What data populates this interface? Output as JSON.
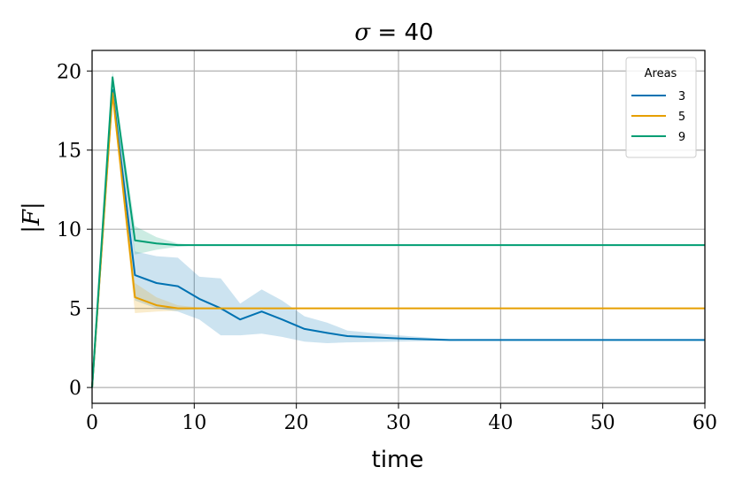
{
  "chart_data": {
    "type": "line",
    "title": "σ = 40",
    "title_symbol": "σ",
    "title_rest": " = 40",
    "xlabel": "time",
    "ylabel": "|F|",
    "xlim": [
      0,
      60
    ],
    "ylim": [
      -1,
      21.3
    ],
    "xticks": [
      0,
      10,
      20,
      30,
      40,
      50,
      60
    ],
    "yticks": [
      0,
      5,
      10,
      15,
      20
    ],
    "grid": true,
    "legend": {
      "title": "Areas",
      "position": "top-right"
    },
    "series": [
      {
        "name": "3",
        "color": "#0072b2",
        "x": [
          0,
          2,
          4.2,
          6.3,
          8.4,
          10.5,
          12.6,
          14.5,
          16.6,
          18.6,
          20.8,
          23,
          25,
          30,
          35,
          40,
          50,
          60
        ],
        "y": [
          0,
          18.8,
          7.1,
          6.6,
          6.4,
          5.6,
          5.0,
          4.3,
          4.8,
          4.3,
          3.7,
          3.45,
          3.25,
          3.1,
          3.0,
          3.0,
          3.0,
          3.0
        ],
        "upper": [
          0,
          19.3,
          8.6,
          8.3,
          8.2,
          7.0,
          6.9,
          5.3,
          6.2,
          5.5,
          4.5,
          4.1,
          3.6,
          3.3,
          3.05,
          3.0,
          3.0,
          3.0
        ],
        "lower": [
          0,
          18.3,
          5.5,
          5.0,
          4.8,
          4.3,
          3.3,
          3.3,
          3.4,
          3.2,
          2.9,
          2.8,
          2.85,
          2.9,
          2.95,
          3.0,
          3.0,
          3.0
        ]
      },
      {
        "name": "5",
        "color": "#e69f00",
        "x": [
          0,
          2,
          4.2,
          6.3,
          8.4,
          10.5,
          20,
          30,
          40,
          50,
          60
        ],
        "y": [
          0,
          18.6,
          5.7,
          5.2,
          5.0,
          5.0,
          5.0,
          5.0,
          5.0,
          5.0,
          5.0
        ],
        "upper": [
          0,
          19.0,
          6.6,
          5.7,
          5.2,
          5.05,
          5.0,
          5.0,
          5.0,
          5.0,
          5.0
        ],
        "lower": [
          0,
          18.2,
          4.7,
          4.8,
          4.85,
          4.95,
          5.0,
          5.0,
          5.0,
          5.0,
          5.0
        ]
      },
      {
        "name": "9",
        "color": "#009e73",
        "x": [
          0,
          2,
          4.2,
          6.3,
          8.4,
          10.5,
          20,
          30,
          40,
          50,
          60
        ],
        "y": [
          0,
          19.6,
          9.3,
          9.1,
          9.0,
          9.0,
          9.0,
          9.0,
          9.0,
          9.0,
          9.0
        ],
        "upper": [
          0,
          20.0,
          10.2,
          9.5,
          9.1,
          9.0,
          9.0,
          9.0,
          9.0,
          9.0,
          9.0
        ],
        "lower": [
          0,
          19.2,
          8.4,
          8.7,
          8.9,
          9.0,
          9.0,
          9.0,
          9.0,
          9.0,
          9.0
        ]
      }
    ]
  }
}
